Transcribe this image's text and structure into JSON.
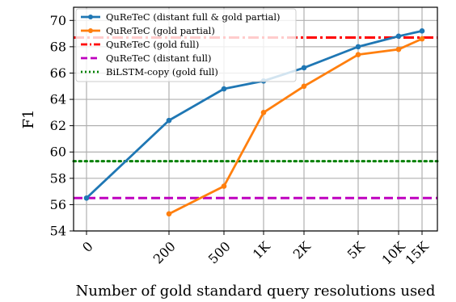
{
  "chart_data": {
    "type": "line",
    "xlabel": "Number of gold standard query resolutions used",
    "ylabel": "F1",
    "x_tick_labels": [
      "0",
      "200",
      "500",
      "1K",
      "2K",
      "5K",
      "10K",
      "15K"
    ],
    "y_ticks": [
      54,
      56,
      58,
      60,
      62,
      64,
      66,
      68,
      70
    ],
    "ylim": [
      54,
      71
    ],
    "grid": true,
    "legend_position": "top-left",
    "series": [
      {
        "name": "QuReTeC (distant full & gold partial)",
        "style": "line-marker",
        "color": "#1f77b4",
        "x": [
          "0",
          "200",
          "500",
          "1K",
          "2K",
          "5K",
          "10K",
          "15K"
        ],
        "values": [
          56.5,
          62.4,
          64.8,
          65.4,
          66.4,
          68.0,
          68.8,
          69.2
        ]
      },
      {
        "name": "QuReTeC (gold partial)",
        "style": "line-marker",
        "color": "#ff7f0e",
        "x": [
          "200",
          "500",
          "1K",
          "2K",
          "5K",
          "10K",
          "15K"
        ],
        "values": [
          55.3,
          57.4,
          63.0,
          65.0,
          67.4,
          67.8,
          68.6
        ]
      },
      {
        "name": "QuReTeC (gold full)",
        "style": "dashdot",
        "color": "#ff0000",
        "constant": 68.7
      },
      {
        "name": "QuReTeC (distant full)",
        "style": "dashed",
        "color": "#bf00bf",
        "constant": 56.5
      },
      {
        "name": "BiLSTM-copy (gold full)",
        "style": "dotted",
        "color": "#008000",
        "constant": 59.3
      }
    ]
  }
}
